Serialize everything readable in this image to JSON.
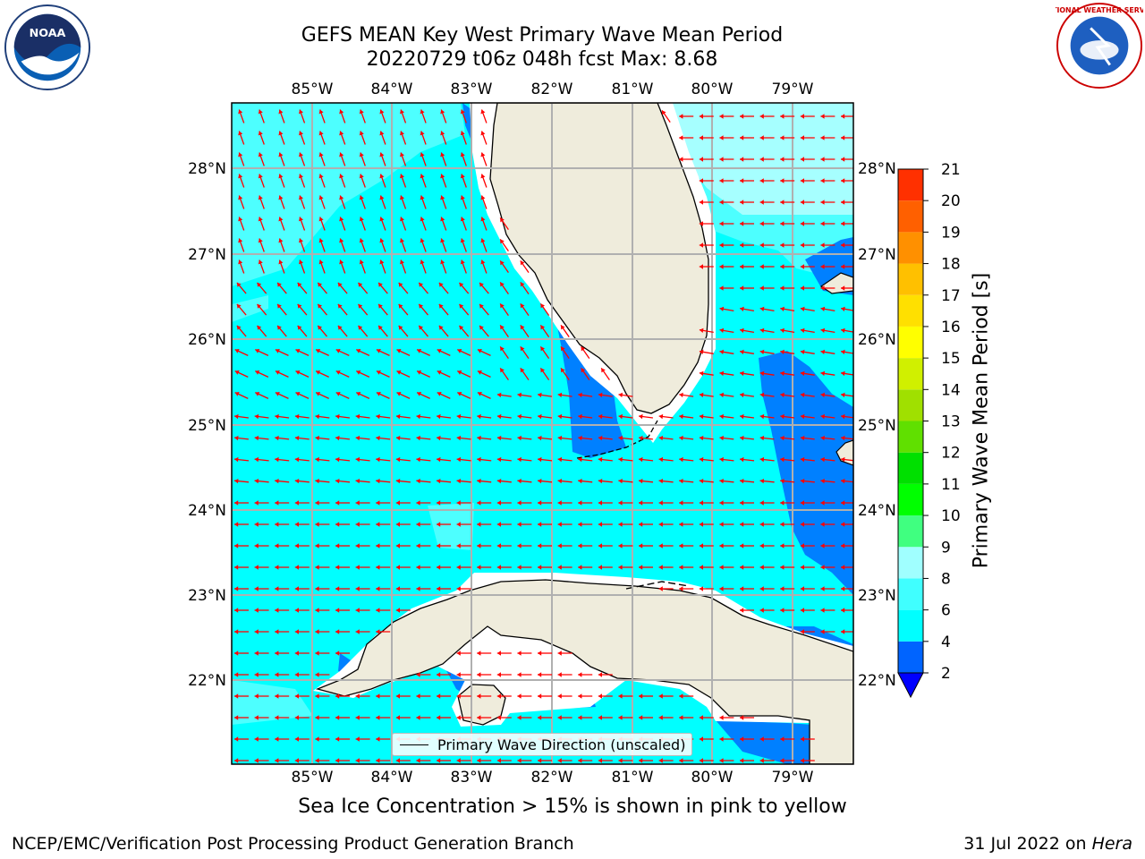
{
  "header": {
    "title_line1": "GEFS MEAN Key West Primary Wave Mean Period",
    "title_line2": "20220729 t06z 048h fcst   Max: 8.68"
  },
  "logos": {
    "left": {
      "name": "noaa-logo",
      "text": "NOAA"
    },
    "right": {
      "name": "nws-logo",
      "text": "NATIONAL WEATHER SERVICE"
    }
  },
  "map": {
    "lon_range": [
      -86.0,
      -78.25
    ],
    "lat_range": [
      21.05,
      28.8
    ],
    "lon_ticks": [
      "85°W",
      "84°W",
      "83°W",
      "82°W",
      "81°W",
      "80°W",
      "79°W"
    ],
    "lon_tick_values": [
      -85,
      -84,
      -83,
      -82,
      -81,
      -80,
      -79
    ],
    "lat_ticks": [
      "22°N",
      "23°N",
      "24°N",
      "25°N",
      "26°N",
      "27°N",
      "28°N"
    ],
    "lat_tick_values": [
      22,
      23,
      24,
      25,
      26,
      27,
      28
    ],
    "grid": true,
    "colors": {
      "ocean_4_6": "#00ffff",
      "ocean_6_8": "#4dffff",
      "ocean_8_9": "#a6ffff",
      "ocean_2_4": "#0080ff",
      "land": "#efecdc",
      "coast": "#000000",
      "arrow": "#ff0000",
      "grid": "#b0b0b0"
    },
    "legend": {
      "label": "Primary Wave Direction (unscaled)",
      "placement": "lower-center"
    }
  },
  "colorbar": {
    "label": "Primary Wave Mean Period [s]",
    "ticks": [
      "2",
      "4",
      "6",
      "8",
      "9",
      "10",
      "11",
      "12",
      "13",
      "14",
      "15",
      "16",
      "17",
      "18",
      "19",
      "20",
      "21"
    ],
    "levels": [
      2,
      4,
      6,
      8,
      9,
      10,
      11,
      12,
      13,
      14,
      15,
      16,
      17,
      18,
      19,
      20,
      21
    ],
    "colors": [
      "#0064ff",
      "#00ffff",
      "#40ffff",
      "#a0ffff",
      "#40ff80",
      "#00ff00",
      "#00e000",
      "#60e000",
      "#a0e000",
      "#d0f000",
      "#ffff00",
      "#ffe000",
      "#ffc000",
      "#ff9000",
      "#ff6000",
      "#ff3000"
    ],
    "extend": "min",
    "under_color": "#0000ff"
  },
  "footer": {
    "subtitle": "Sea Ice Concentration > 15% is shown in pink to yellow",
    "left": "NCEP/EMC/Verification Post Processing Product Generation Branch",
    "right_date": "31 Jul 2022 on ",
    "right_machine": "Hera"
  }
}
